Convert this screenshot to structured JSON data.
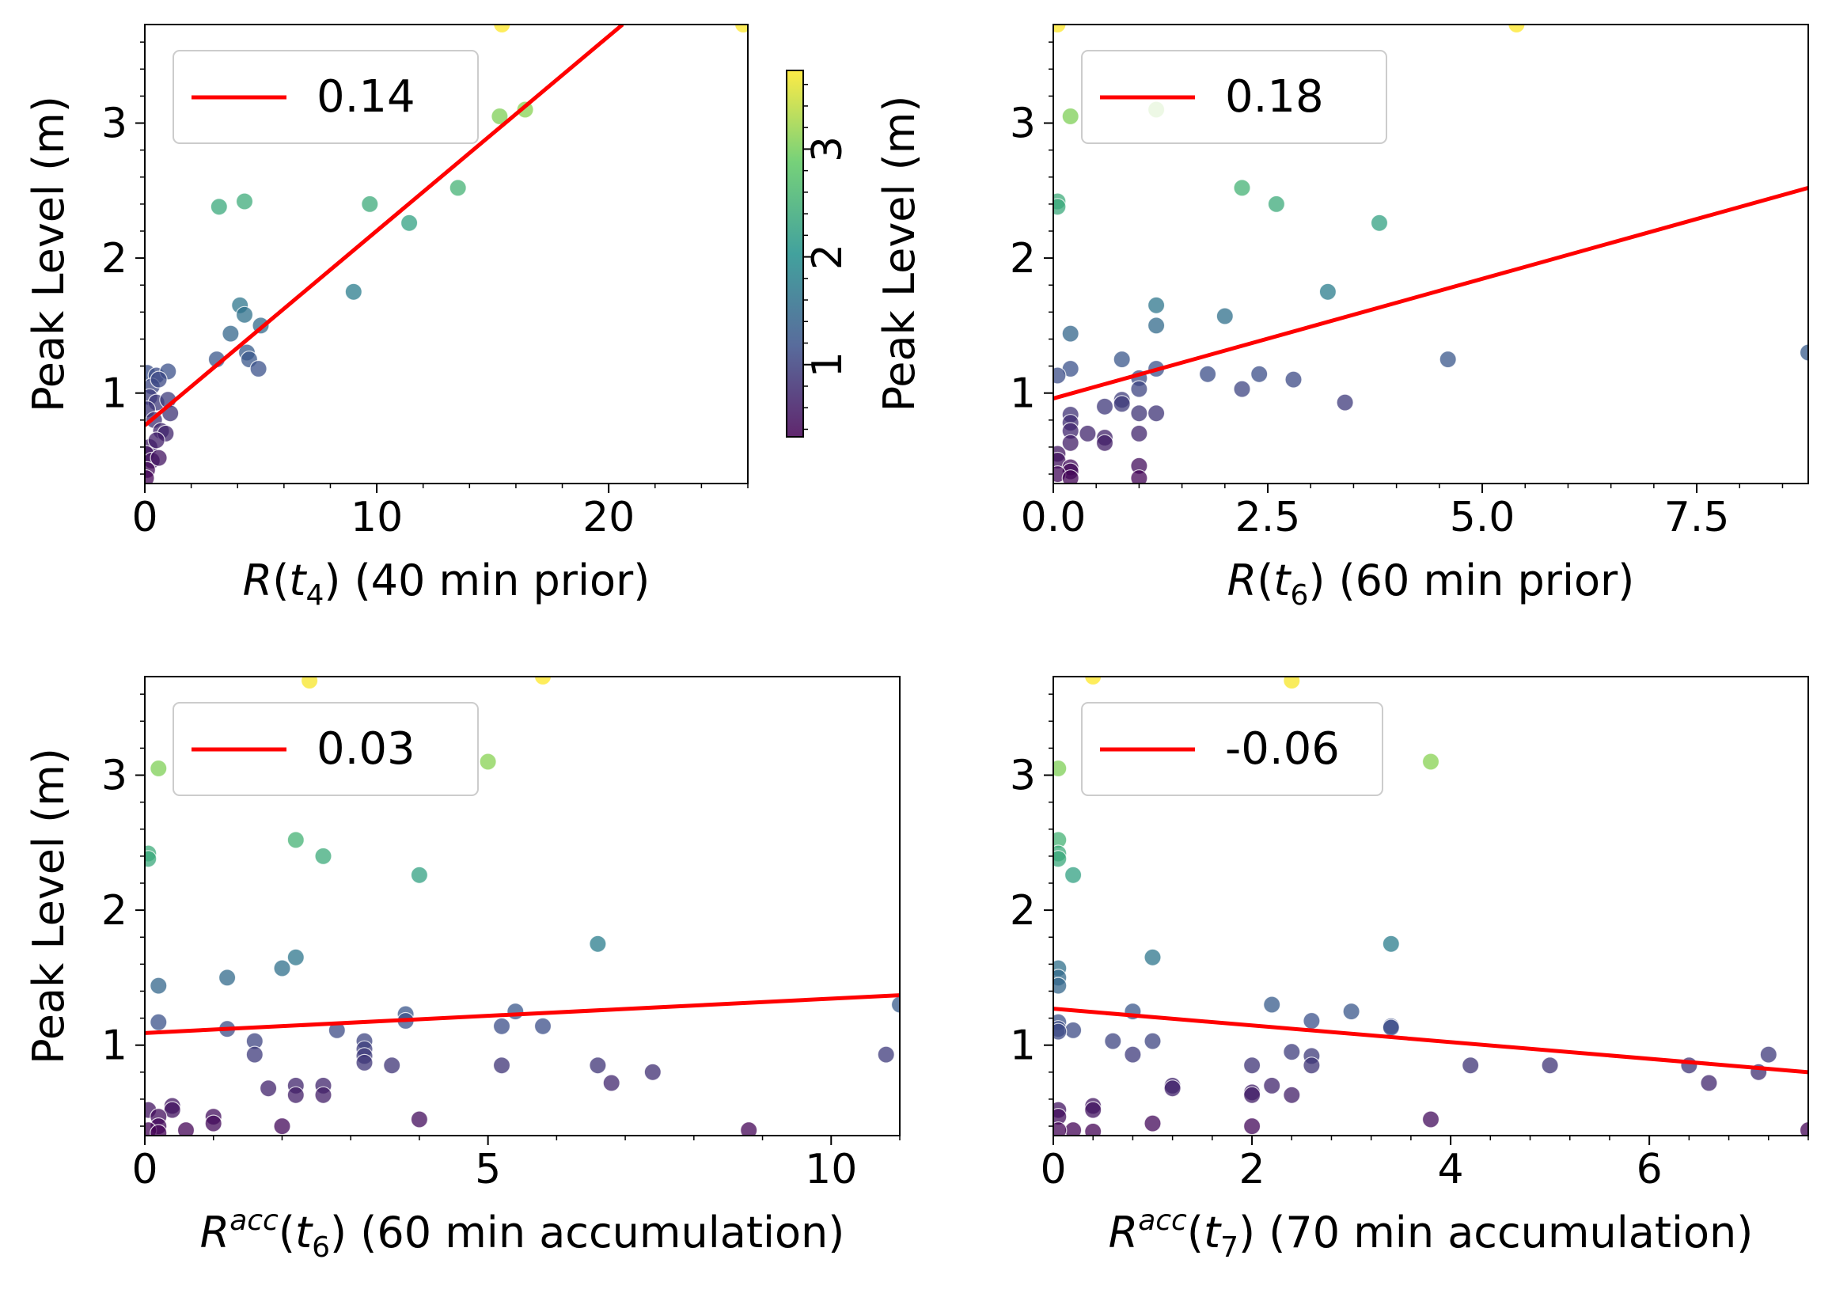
{
  "colors": {
    "fit_line": "#ff0000",
    "colormap": [
      "#440154",
      "#3b528b",
      "#21918c",
      "#5ec962",
      "#fde725"
    ]
  },
  "colorbar": {
    "label": "Peak Level (m)",
    "range": [
      0.33,
      3.73
    ],
    "ticks": [
      "1",
      "2",
      "3"
    ]
  },
  "chart_data": [
    {
      "type": "scatter",
      "xlabel": "R(t4) (40 min prior)",
      "xlabel_parts": {
        "base": "R(",
        "sup": "",
        "var": "t",
        "sub": "4",
        "rest": ") (40 min prior)"
      },
      "ylabel": "Peak Level (m)",
      "legend": "0.14",
      "xlim": [
        0,
        26
      ],
      "ylim": [
        0.33,
        3.73
      ],
      "xticks": [
        0,
        10,
        20
      ],
      "xtick_labels": [
        "0",
        "10",
        "20"
      ],
      "yticks": [
        1,
        2,
        3
      ],
      "ytick_labels": [
        "1",
        "2",
        "3"
      ],
      "fit": {
        "x": [
          0,
          20.6
        ],
        "y": [
          0.76,
          3.73
        ]
      },
      "points": [
        [
          15.4,
          3.73
        ],
        [
          25.8,
          3.73
        ],
        [
          15.3,
          3.05
        ],
        [
          16.4,
          3.1
        ],
        [
          3.2,
          2.38
        ],
        [
          4.3,
          2.42
        ],
        [
          9.7,
          2.4
        ],
        [
          13.5,
          2.52
        ],
        [
          11.4,
          2.26
        ],
        [
          9.0,
          1.75
        ],
        [
          4.1,
          1.65
        ],
        [
          4.3,
          1.58
        ],
        [
          5.0,
          1.5
        ],
        [
          3.7,
          1.44
        ],
        [
          3.1,
          1.25
        ],
        [
          4.4,
          1.3
        ],
        [
          4.5,
          1.25
        ],
        [
          4.9,
          1.18
        ],
        [
          0.1,
          1.15
        ],
        [
          0.5,
          1.13
        ],
        [
          1.0,
          1.16
        ],
        [
          0.3,
          1.05
        ],
        [
          0.6,
          1.1
        ],
        [
          0.2,
          0.97
        ],
        [
          0.5,
          0.93
        ],
        [
          1.0,
          0.95
        ],
        [
          1.1,
          0.85
        ],
        [
          0.1,
          0.88
        ],
        [
          0.4,
          0.8
        ],
        [
          0.7,
          0.72
        ],
        [
          0.9,
          0.7
        ],
        [
          0.2,
          0.6
        ],
        [
          0.5,
          0.65
        ],
        [
          0.05,
          0.55
        ],
        [
          0.3,
          0.5
        ],
        [
          0.6,
          0.52
        ],
        [
          0.1,
          0.43
        ],
        [
          0.05,
          0.37
        ]
      ]
    },
    {
      "type": "scatter",
      "xlabel": "R(t6) (60 min prior)",
      "xlabel_parts": {
        "base": "R(",
        "sup": "",
        "var": "t",
        "sub": "6",
        "rest": ") (60 min prior)"
      },
      "ylabel": "",
      "legend": "0.18",
      "xlim": [
        0,
        8.8
      ],
      "ylim": [
        0.33,
        3.73
      ],
      "xticks": [
        0,
        2.5,
        5.0,
        7.5
      ],
      "xtick_labels": [
        "0.0",
        "2.5",
        "5.0",
        "7.5"
      ],
      "yticks": [
        1,
        2,
        3
      ],
      "ytick_labels": [
        "1",
        "2",
        "3"
      ],
      "fit": {
        "x": [
          0,
          8.8
        ],
        "y": [
          0.96,
          2.52
        ]
      },
      "points": [
        [
          5.4,
          3.73
        ],
        [
          0.05,
          3.73
        ],
        [
          0.2,
          3.05
        ],
        [
          1.2,
          3.1
        ],
        [
          2.2,
          2.52
        ],
        [
          2.6,
          2.4
        ],
        [
          3.8,
          2.26
        ],
        [
          0.05,
          2.42
        ],
        [
          0.05,
          2.38
        ],
        [
          3.2,
          1.75
        ],
        [
          1.2,
          1.65
        ],
        [
          2.0,
          1.57
        ],
        [
          1.2,
          1.5
        ],
        [
          0.2,
          1.44
        ],
        [
          4.6,
          1.25
        ],
        [
          8.8,
          1.3
        ],
        [
          0.8,
          1.25
        ],
        [
          0.2,
          1.18
        ],
        [
          1.2,
          1.18
        ],
        [
          1.8,
          1.14
        ],
        [
          2.4,
          1.14
        ],
        [
          0.05,
          1.13
        ],
        [
          1.0,
          1.11
        ],
        [
          2.8,
          1.1
        ],
        [
          2.2,
          1.03
        ],
        [
          1.0,
          1.03
        ],
        [
          0.8,
          0.95
        ],
        [
          3.4,
          0.93
        ],
        [
          0.6,
          0.9
        ],
        [
          0.8,
          0.92
        ],
        [
          1.0,
          0.85
        ],
        [
          1.2,
          0.85
        ],
        [
          0.2,
          0.84
        ],
        [
          0.2,
          0.78
        ],
        [
          0.2,
          0.72
        ],
        [
          0.4,
          0.7
        ],
        [
          1.0,
          0.7
        ],
        [
          0.6,
          0.67
        ],
        [
          0.6,
          0.63
        ],
        [
          0.2,
          0.63
        ],
        [
          0.05,
          0.55
        ],
        [
          0.05,
          0.5
        ],
        [
          0.2,
          0.45
        ],
        [
          0.2,
          0.42
        ],
        [
          1.0,
          0.46
        ],
        [
          0.05,
          0.4
        ],
        [
          0.2,
          0.37
        ],
        [
          1.0,
          0.37
        ]
      ]
    },
    {
      "type": "scatter",
      "xlabel": "Racc(t6) (60 min accumulation)",
      "xlabel_parts": {
        "base": "R",
        "sup": "acc",
        "var": "(t",
        "sub": "6",
        "rest": ") (60 min accumulation)"
      },
      "ylabel": "Peak Level (m)",
      "legend": "0.03",
      "xlim": [
        0,
        11
      ],
      "ylim": [
        0.33,
        3.73
      ],
      "xticks": [
        0,
        5,
        10
      ],
      "xtick_labels": [
        "0",
        "5",
        "10"
      ],
      "yticks": [
        1,
        2,
        3
      ],
      "ytick_labels": [
        "1",
        "2",
        "3"
      ],
      "fit": {
        "x": [
          0,
          11
        ],
        "y": [
          1.09,
          1.37
        ]
      },
      "points": [
        [
          2.4,
          3.7
        ],
        [
          5.8,
          3.73
        ],
        [
          0.2,
          3.05
        ],
        [
          5.0,
          3.1
        ],
        [
          0.05,
          2.42
        ],
        [
          0.05,
          2.38
        ],
        [
          2.2,
          2.52
        ],
        [
          2.6,
          2.4
        ],
        [
          4.0,
          2.26
        ],
        [
          6.6,
          1.75
        ],
        [
          2.2,
          1.65
        ],
        [
          2.0,
          1.57
        ],
        [
          1.2,
          1.5
        ],
        [
          0.2,
          1.44
        ],
        [
          11.0,
          1.3
        ],
        [
          3.8,
          1.23
        ],
        [
          5.4,
          1.25
        ],
        [
          0.2,
          1.17
        ],
        [
          3.8,
          1.18
        ],
        [
          5.8,
          1.14
        ],
        [
          5.2,
          1.14
        ],
        [
          1.2,
          1.12
        ],
        [
          2.8,
          1.11
        ],
        [
          1.6,
          1.03
        ],
        [
          3.2,
          1.03
        ],
        [
          3.2,
          0.97
        ],
        [
          1.6,
          0.93
        ],
        [
          3.2,
          0.92
        ],
        [
          10.8,
          0.93
        ],
        [
          3.2,
          0.87
        ],
        [
          3.6,
          0.85
        ],
        [
          5.2,
          0.85
        ],
        [
          6.6,
          0.85
        ],
        [
          7.4,
          0.8
        ],
        [
          6.8,
          0.72
        ],
        [
          2.2,
          0.7
        ],
        [
          2.6,
          0.7
        ],
        [
          1.8,
          0.68
        ],
        [
          2.2,
          0.63
        ],
        [
          2.6,
          0.63
        ],
        [
          0.4,
          0.55
        ],
        [
          0.4,
          0.52
        ],
        [
          0.05,
          0.52
        ],
        [
          0.2,
          0.47
        ],
        [
          1.0,
          0.47
        ],
        [
          4.0,
          0.45
        ],
        [
          1.0,
          0.42
        ],
        [
          0.2,
          0.4
        ],
        [
          2.0,
          0.4
        ],
        [
          0.6,
          0.37
        ],
        [
          8.8,
          0.37
        ],
        [
          0.05,
          0.37
        ],
        [
          0.2,
          0.35
        ]
      ]
    },
    {
      "type": "scatter",
      "xlabel": "Racc(t7) (70 min accumulation)",
      "xlabel_parts": {
        "base": "R",
        "sup": "acc",
        "var": "(t",
        "sub": "7",
        "rest": ") (70 min accumulation)"
      },
      "ylabel": "",
      "legend": "-0.06",
      "xlim": [
        0,
        7.6
      ],
      "ylim": [
        0.33,
        3.73
      ],
      "xticks": [
        0,
        2,
        4,
        6
      ],
      "xtick_labels": [
        "0",
        "2",
        "4",
        "6"
      ],
      "yticks": [
        1,
        2,
        3
      ],
      "ytick_labels": [
        "1",
        "2",
        "3"
      ],
      "fit": {
        "x": [
          0,
          7.6
        ],
        "y": [
          1.27,
          0.8
        ]
      },
      "points": [
        [
          0.4,
          3.73
        ],
        [
          2.4,
          3.7
        ],
        [
          0.05,
          3.05
        ],
        [
          3.8,
          3.1
        ],
        [
          0.05,
          2.52
        ],
        [
          0.05,
          2.42
        ],
        [
          0.05,
          2.38
        ],
        [
          0.2,
          2.26
        ],
        [
          3.4,
          1.75
        ],
        [
          1.0,
          1.65
        ],
        [
          0.05,
          1.57
        ],
        [
          0.05,
          1.5
        ],
        [
          0.05,
          1.44
        ],
        [
          2.2,
          1.3
        ],
        [
          0.8,
          1.25
        ],
        [
          3.0,
          1.25
        ],
        [
          2.6,
          1.18
        ],
        [
          0.05,
          1.17
        ],
        [
          3.4,
          1.14
        ],
        [
          3.4,
          1.13
        ],
        [
          0.05,
          1.12
        ],
        [
          0.2,
          1.11
        ],
        [
          0.05,
          1.1
        ],
        [
          1.0,
          1.03
        ],
        [
          0.6,
          1.03
        ],
        [
          2.4,
          0.95
        ],
        [
          0.8,
          0.93
        ],
        [
          7.2,
          0.93
        ],
        [
          2.6,
          0.92
        ],
        [
          2.6,
          0.85
        ],
        [
          2.0,
          0.85
        ],
        [
          4.2,
          0.85
        ],
        [
          5.0,
          0.85
        ],
        [
          6.4,
          0.85
        ],
        [
          7.1,
          0.8
        ],
        [
          6.6,
          0.72
        ],
        [
          2.2,
          0.7
        ],
        [
          1.2,
          0.7
        ],
        [
          1.2,
          0.68
        ],
        [
          2.0,
          0.65
        ],
        [
          2.0,
          0.63
        ],
        [
          2.4,
          0.63
        ],
        [
          0.4,
          0.55
        ],
        [
          0.4,
          0.52
        ],
        [
          0.05,
          0.52
        ],
        [
          0.05,
          0.47
        ],
        [
          3.8,
          0.45
        ],
        [
          1.0,
          0.42
        ],
        [
          2.0,
          0.4
        ],
        [
          0.2,
          0.37
        ],
        [
          0.4,
          0.36
        ],
        [
          7.6,
          0.37
        ],
        [
          0.05,
          0.37
        ]
      ]
    }
  ]
}
